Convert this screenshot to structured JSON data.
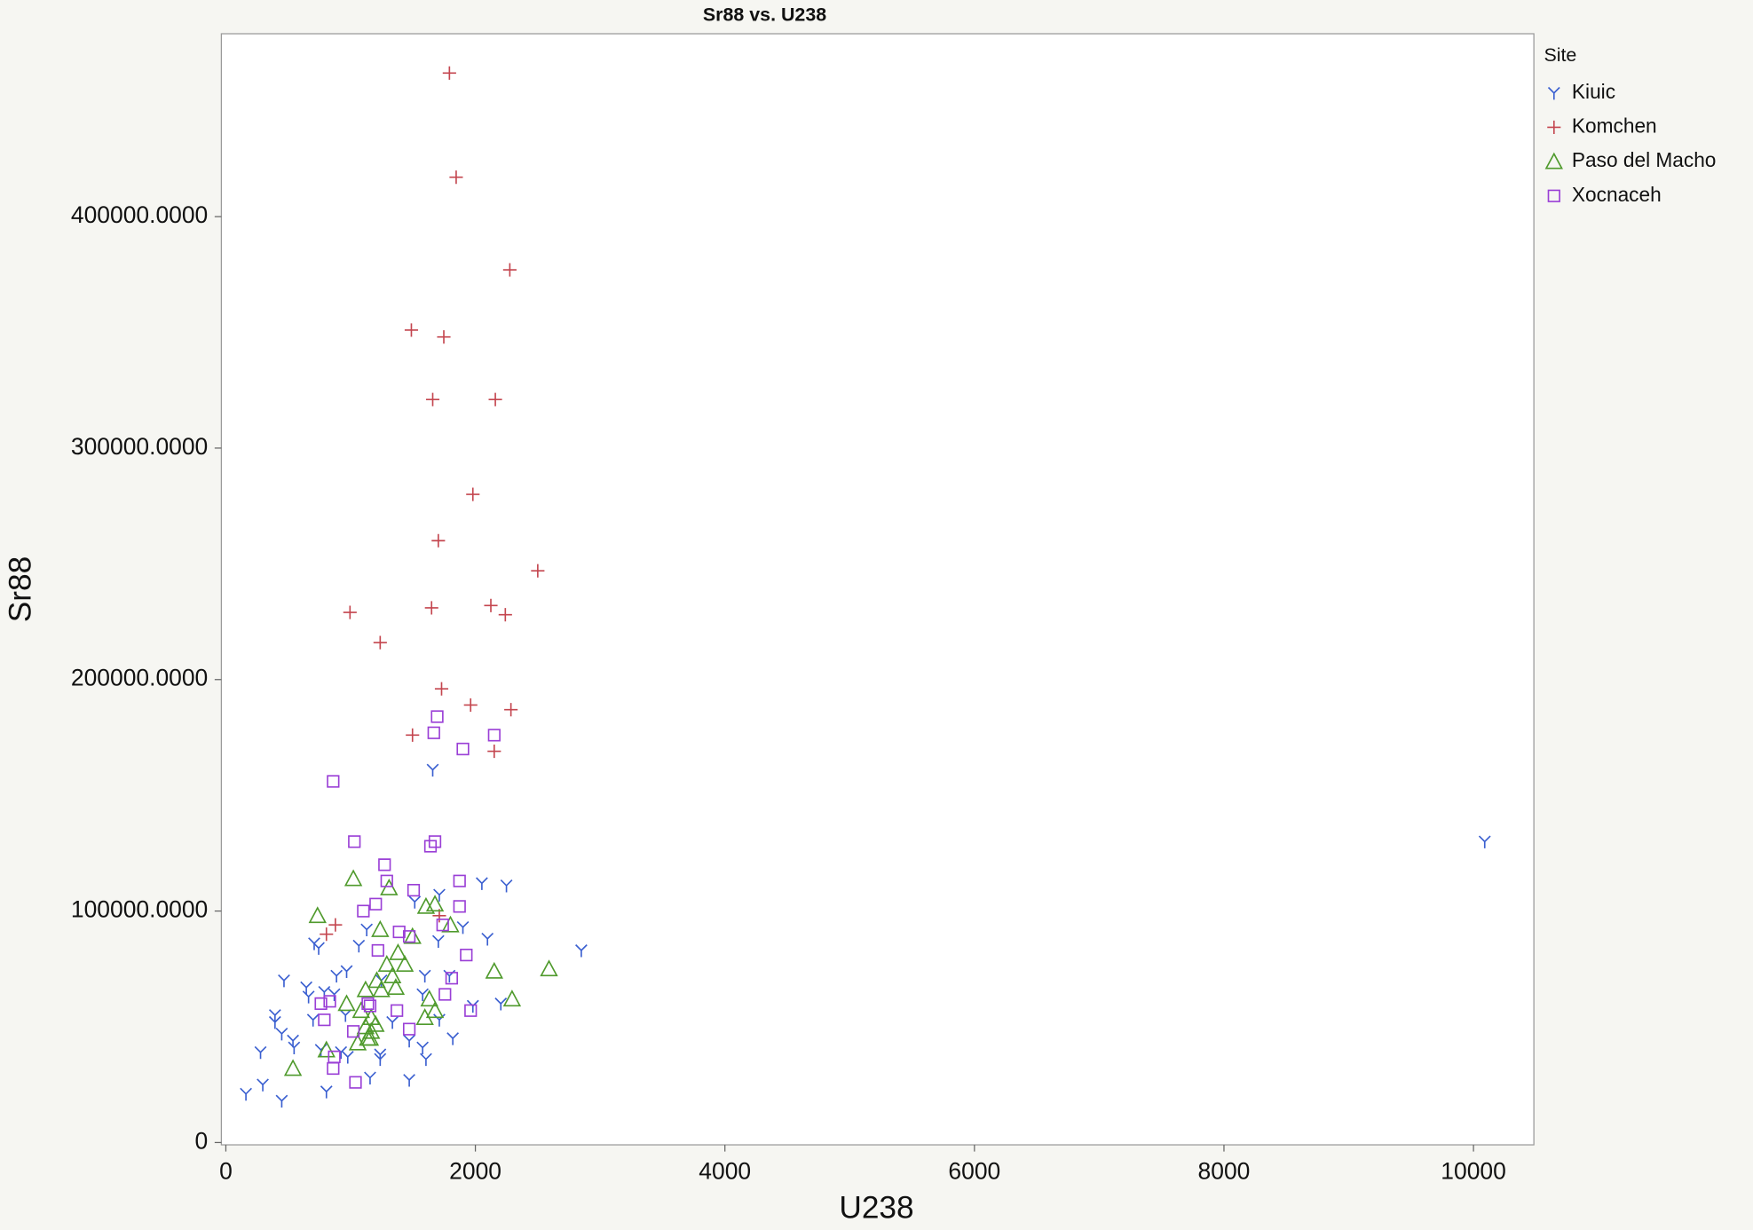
{
  "chart_data": {
    "type": "scatter",
    "title": "Sr88 vs. U238",
    "x_label": "U238",
    "y_label": "Sr88",
    "legend_title": "Site",
    "legend": "right",
    "xlim": [
      -36,
      10484
    ],
    "xticks": [
      0,
      2000,
      4000,
      6000,
      8000,
      10000
    ],
    "ylim": [
      -1000,
      479000
    ],
    "yticks": [
      0,
      {
        "value": 100000,
        "label": "100000.0000"
      },
      {
        "value": 200000,
        "label": "200000.0000"
      },
      {
        "value": 300000,
        "label": "300000.0000"
      },
      {
        "value": 400000,
        "label": "400000.0000"
      }
    ],
    "series": [
      {
        "name": "Kiuic",
        "color": "#3a5fd0",
        "marker": "y",
        "x": [
          10090,
          1658,
          2052,
          2249,
          1711,
          1514,
          2097,
          2849,
          1900,
          708,
          744,
          1066,
          968,
          887,
          645,
          466,
          789,
          663,
          869,
          1595,
          1577,
          1246,
          394,
          394,
          699,
          959,
          1335,
          1711,
          1980,
          448,
          538,
          547,
          278,
          762,
          923,
          977,
          1237,
          1577,
          1819,
          1470,
          161,
          296,
          448,
          806,
          1156,
          1470,
          1604,
          1237,
          1792,
          2204,
          1129,
          1703
        ],
        "y": [
          130000,
          161000,
          112000,
          111000,
          107000,
          104000,
          88000,
          83000,
          93000,
          86000,
          84000,
          85000,
          74000,
          72000,
          67000,
          70000,
          65000,
          63000,
          64000,
          72000,
          64000,
          70000,
          55000,
          52000,
          53000,
          55000,
          52000,
          53000,
          59000,
          47000,
          44000,
          41000,
          39000,
          40000,
          39000,
          37000,
          38000,
          41000,
          45000,
          44000,
          21000,
          25000,
          18000,
          22000,
          28000,
          27000,
          36000,
          36000,
          72000,
          60000,
          92000,
          87000
        ]
      },
      {
        "name": "Komchen",
        "color": "#c4464f",
        "marker": "plus",
        "x": [
          1792,
          1846,
          2276,
          1487,
          1747,
          1658,
          2160,
          1980,
          1703,
          2500,
          995,
          1649,
          2124,
          2240,
          1237,
          1729,
          1962,
          2285,
          1496,
          2151,
          878,
          806,
          1711
        ],
        "y": [
          462000,
          417000,
          377000,
          351000,
          348000,
          321000,
          321000,
          280000,
          260000,
          247000,
          229000,
          231000,
          232000,
          228000,
          216000,
          196000,
          189000,
          187000,
          176000,
          169000,
          94000,
          90000,
          98000
        ]
      },
      {
        "name": "Paso del Macho",
        "color": "#4f9a2c",
        "marker": "triangle",
        "x": [
          1022,
          1308,
          735,
          1604,
          1676,
          1800,
          1237,
          1496,
          1380,
          1434,
          1290,
          2590,
          2151,
          1335,
          1210,
          1362,
          1120,
          1246,
          1631,
          2294,
          968,
          1084,
          1676,
          1165,
          1595,
          1120,
          1165,
          1138,
          1057,
          806,
          538,
          1201,
          1156
        ],
        "y": [
          114000,
          110000,
          98000,
          102000,
          103000,
          94000,
          92000,
          89000,
          82000,
          77000,
          77000,
          75000,
          74000,
          72000,
          70000,
          67000,
          66000,
          66000,
          62000,
          62000,
          60000,
          57000,
          57000,
          54000,
          54000,
          50000,
          48000,
          45000,
          43000,
          40000,
          32000,
          51000,
          45000
        ]
      },
      {
        "name": "Xocnaceh",
        "color": "#9a3fd6",
        "marker": "square",
        "x": [
          860,
          1694,
          1667,
          2151,
          1900,
          1030,
          1676,
          1640,
          1272,
          1290,
          1505,
          1873,
          1201,
          1102,
          1873,
          1470,
          1389,
          1738,
          1219,
          1927,
          1810,
          1756,
          762,
          833,
          1138,
          789,
          1371,
          1962,
          1022,
          1470,
          869,
          860,
          1039,
          1156
        ],
        "y": [
          156000,
          184000,
          177000,
          176000,
          170000,
          130000,
          130000,
          128000,
          120000,
          113000,
          109000,
          113000,
          103000,
          100000,
          102000,
          89000,
          91000,
          94000,
          83000,
          81000,
          71000,
          64000,
          60000,
          61000,
          60000,
          53000,
          57000,
          57000,
          48000,
          49000,
          37000,
          32000,
          26000,
          59000
        ]
      }
    ]
  }
}
